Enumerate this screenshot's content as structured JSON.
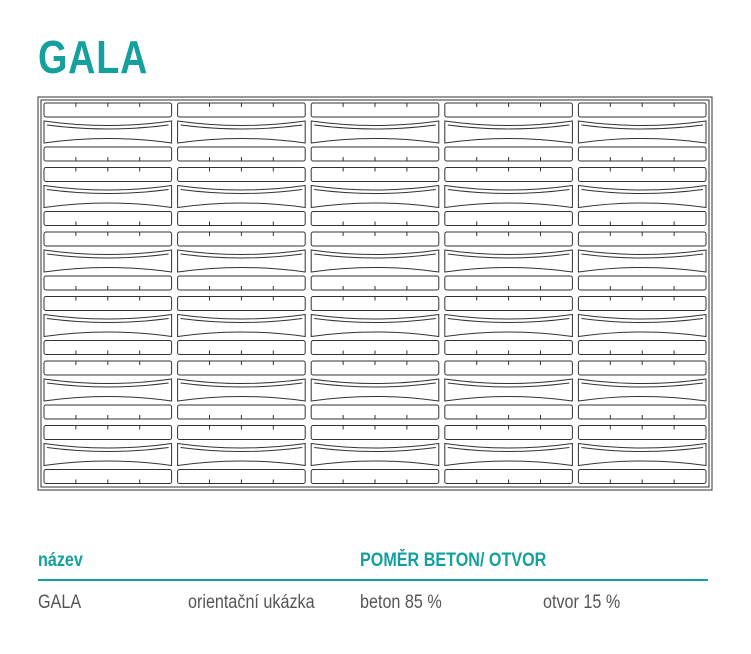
{
  "header": {
    "title": "GALA"
  },
  "table": {
    "headers": [
      "název",
      "POMĚR BETON/ OTVOR"
    ],
    "rows": [
      [
        "GALA",
        "orientační ukázka",
        "beton 85 %",
        "otvor 15 %"
      ]
    ]
  }
}
